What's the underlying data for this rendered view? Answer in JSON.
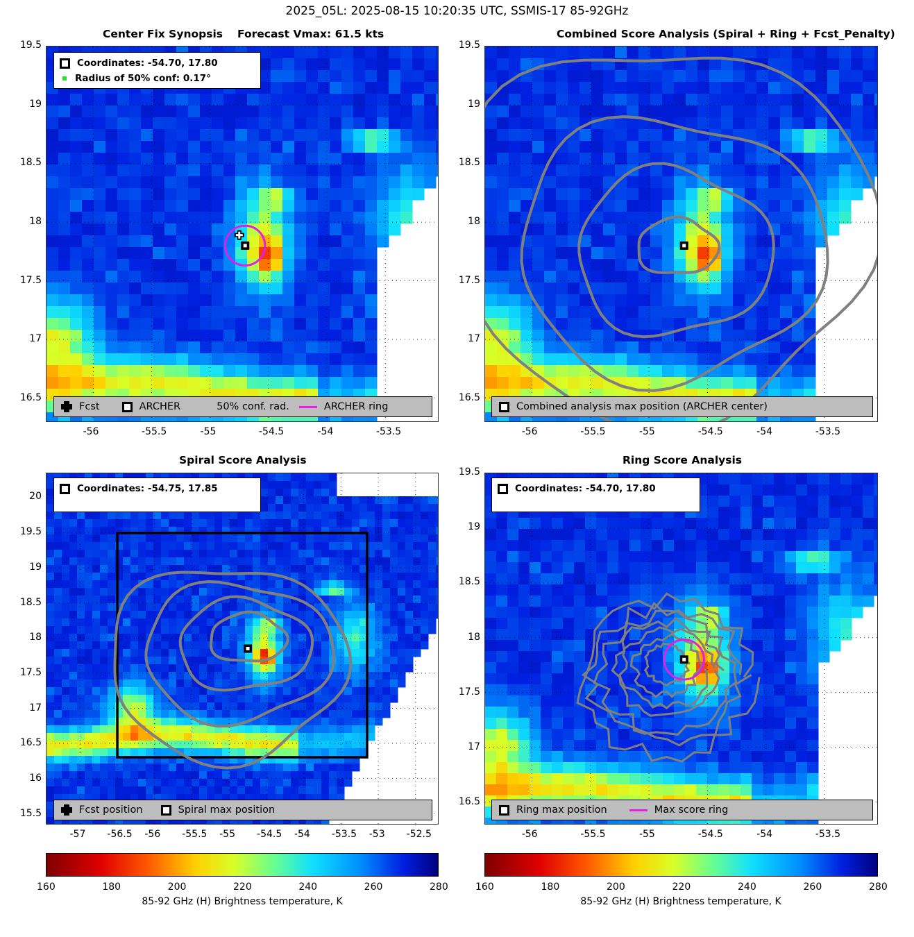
{
  "figure_title": "2025_05L: 2025-08-15 10:20:35 UTC, SSMIS-17 85-92GHz",
  "panels": {
    "synopsis": {
      "title_left": "Center Fix Synopsis",
      "title_right": "Forecast Vmax: 61.5 kts",
      "legend_coords": "Coordinates: -54.70, 17.80",
      "legend_radius": "Radius of 50% conf: 0.17°",
      "bottom_fcst": "Fcst",
      "bottom_archer": "ARCHER",
      "bottom_conf": "50% conf. rad.",
      "bottom_ring": "ARCHER ring"
    },
    "combined": {
      "title": "Combined Score Analysis (Spiral + Ring + Fcst_Penalty)",
      "bottom_label": "Combined analysis max position (ARCHER center)"
    },
    "spiral": {
      "title": "Spiral Score Analysis",
      "legend_coords": "Coordinates: -54.75, 17.85",
      "bottom_fcst": "Fcst position",
      "bottom_max": "Spiral max position"
    },
    "ring": {
      "title": "Ring Score Analysis",
      "legend_coords": "Coordinates: -54.70, 17.80",
      "bottom_max": "Ring max position",
      "bottom_ring": "Max score ring"
    }
  },
  "colorbar": {
    "label": "85-92 GHz (H) Brightness temperature, K",
    "ticks": [
      "160",
      "180",
      "200",
      "220",
      "240",
      "260",
      "280"
    ],
    "colormap": "jet_reversed",
    "range": [
      160,
      280
    ]
  },
  "colors": {
    "ring": "#e41ee4",
    "contour": "#808080",
    "legend_bg": "#bdbdbd"
  },
  "chart_data": [
    {
      "type": "heatmap",
      "title": "Center Fix Synopsis",
      "xlim": [
        -56.4,
        -53.05
      ],
      "ylim": [
        16.3,
        19.5
      ],
      "xticks": [
        "-56",
        "-55.5",
        "-55",
        "-54.5",
        "-54",
        "-53.5"
      ],
      "yticks": [
        "16.5",
        "17",
        "17.5",
        "18",
        "18.5",
        "19",
        "19.5"
      ],
      "xtick_values": [
        -56,
        -55.5,
        -55,
        -54.5,
        -54,
        -53.5
      ],
      "ytick_values": [
        16.5,
        17,
        17.5,
        18,
        18.5,
        19,
        19.5
      ],
      "archer_center": [
        -54.7,
        17.8
      ],
      "forecast_position": [
        -54.75,
        17.89
      ],
      "conf_radius_deg": 0.17,
      "grid": true
    },
    {
      "type": "heatmap",
      "title": "Combined Score Analysis (Spiral + Ring + Fcst_Penalty)",
      "xlim": [
        -56.4,
        -53.05
      ],
      "ylim": [
        16.3,
        19.5
      ],
      "xticks": [
        "-56",
        "-55.5",
        "-55",
        "-54.5",
        "-54",
        "-53.5"
      ],
      "yticks": [
        "16.5",
        "17",
        "17.5",
        "18",
        "18.5",
        "19",
        "19.5"
      ],
      "xtick_values": [
        -56,
        -55.5,
        -55,
        -54.5,
        -54,
        -53.5
      ],
      "ytick_values": [
        16.5,
        17,
        17.5,
        18,
        18.5,
        19,
        19.5
      ],
      "max_position": [
        -54.7,
        17.8
      ],
      "grid": true
    },
    {
      "type": "heatmap",
      "title": "Spiral Score Analysis",
      "xlim": [
        -57.45,
        -52.2
      ],
      "ylim": [
        15.35,
        20.35
      ],
      "xticks": [
        "-57",
        "-56.5",
        "-56",
        "-55.5",
        "-55",
        "-54.5",
        "-54",
        "-53.5",
        "-53",
        "-52.5"
      ],
      "yticks": [
        "15.5",
        "16",
        "16.5",
        "17",
        "17.5",
        "18",
        "18.5",
        "19",
        "19.5",
        "20"
      ],
      "xtick_values": [
        -57,
        -56.5,
        -56,
        -55.5,
        -55,
        -54.5,
        -54,
        -53.5,
        -53,
        -52.5
      ],
      "ytick_values": [
        15.5,
        16,
        16.5,
        17,
        17.5,
        18,
        18.5,
        19,
        19.5,
        20
      ],
      "max_position": [
        -54.75,
        17.85
      ],
      "search_box": {
        "lon": [
          -56.5,
          -53.15
        ],
        "lat": [
          16.3,
          19.5
        ]
      },
      "grid": true
    },
    {
      "type": "heatmap",
      "title": "Ring Score Analysis",
      "xlim": [
        -56.4,
        -53.05
      ],
      "ylim": [
        16.3,
        19.5
      ],
      "xticks": [
        "-56",
        "-55.5",
        "-55",
        "-54.5",
        "-54",
        "-53.5"
      ],
      "yticks": [
        "16.5",
        "17",
        "17.5",
        "18",
        "18.5",
        "19",
        "19.5"
      ],
      "xtick_values": [
        -56,
        -55.5,
        -55,
        -54.5,
        -54,
        -53.5
      ],
      "ytick_values": [
        16.5,
        17,
        17.5,
        18,
        18.5,
        19,
        19.5
      ],
      "max_position": [
        -54.7,
        17.8
      ],
      "ring_radius_deg": 0.17,
      "grid": true
    }
  ]
}
